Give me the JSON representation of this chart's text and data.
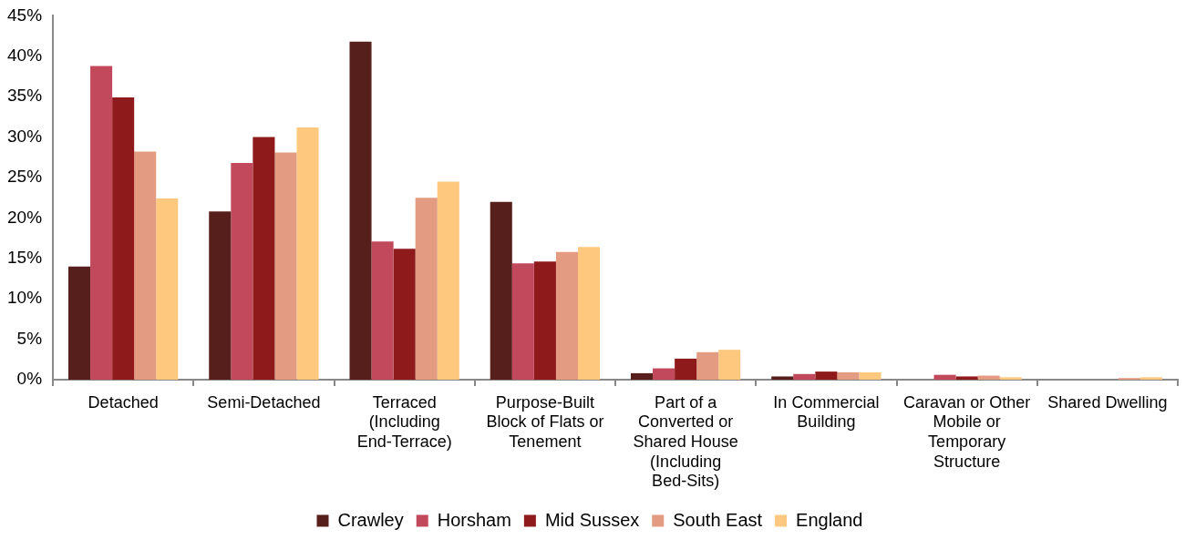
{
  "chart_data": {
    "type": "bar",
    "categories": [
      "Detached",
      "Semi-Detached",
      "Terraced (Including End-Terrace)",
      "Purpose-Built Block of Flats or Tenement",
      "Part of a Converted or Shared House (Including Bed-Sits)",
      "In Commercial Building",
      "Caravan or Other Mobile or Temporary Structure",
      "Shared Dwelling"
    ],
    "series": [
      {
        "name": "Crawley",
        "color": "#561f1c",
        "values": [
          14.0,
          20.8,
          41.8,
          22.0,
          0.8,
          0.4,
          0,
          0
        ]
      },
      {
        "name": "Horsham",
        "color": "#c2495c",
        "values": [
          38.8,
          26.8,
          17.1,
          14.4,
          1.4,
          0.7,
          0.6,
          0
        ]
      },
      {
        "name": "Mid Sussex",
        "color": "#8e1a1b",
        "values": [
          34.9,
          30.0,
          16.2,
          14.6,
          2.6,
          1.0,
          0.4,
          0
        ]
      },
      {
        "name": "South East",
        "color": "#e39b81",
        "values": [
          28.2,
          28.1,
          22.5,
          15.8,
          3.4,
          0.9,
          0.5,
          0.2
        ]
      },
      {
        "name": "England",
        "color": "#fec87f",
        "values": [
          22.4,
          31.2,
          24.5,
          16.4,
          3.7,
          0.9,
          0.3,
          0.3
        ]
      }
    ],
    "ylim": [
      0,
      45
    ],
    "yticks": [
      {
        "value": 0,
        "label": "0%"
      },
      {
        "value": 5,
        "label": "5%"
      },
      {
        "value": 10,
        "label": "10%"
      },
      {
        "value": 15,
        "label": "15%"
      },
      {
        "value": 20,
        "label": "20%"
      },
      {
        "value": 25,
        "label": "25%"
      },
      {
        "value": 30,
        "label": "30%"
      },
      {
        "value": 35,
        "label": "35%"
      },
      {
        "value": 40,
        "label": "40%"
      },
      {
        "value": 45,
        "label": "45%"
      }
    ],
    "grid": false,
    "legend": "bottom"
  }
}
